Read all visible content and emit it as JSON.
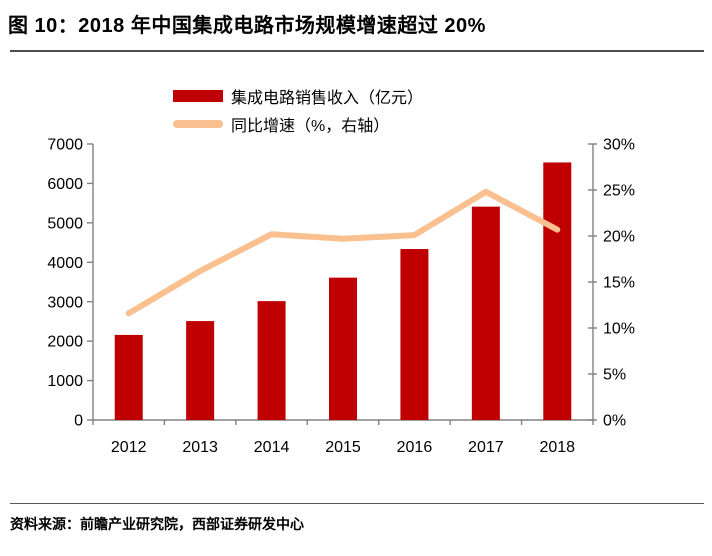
{
  "header": {
    "title": "图 10：2018 年中国集成电路市场规模增速超过 20%"
  },
  "footer": {
    "source": "资料来源：前瞻产业研究院，西部证券研发中心"
  },
  "colors": {
    "bar": "#C00000",
    "line": "#FAC090",
    "axis": "#808080",
    "rule": "#4d4d4d",
    "text": "#000000"
  },
  "chart_data": {
    "type": "bar",
    "subtype": "bar+line dual axis",
    "categories": [
      "2012",
      "2013",
      "2014",
      "2015",
      "2016",
      "2017",
      "2018"
    ],
    "series": [
      {
        "name": "集成电路销售收入（亿元）",
        "type": "bar",
        "axis": "left",
        "color": "#C00000",
        "values": [
          2158,
          2509,
          3015,
          3610,
          4336,
          5411,
          6532
        ]
      },
      {
        "name": "同比增速（%，右轴）",
        "type": "line",
        "axis": "right",
        "color": "#FAC090",
        "values": [
          11.6,
          16.2,
          20.2,
          19.7,
          20.1,
          24.8,
          20.7
        ]
      }
    ],
    "left_axis": {
      "min": 0,
      "max": 7000,
      "step": 1000,
      "ticks": [
        "0",
        "1000",
        "2000",
        "3000",
        "4000",
        "5000",
        "6000",
        "7000"
      ]
    },
    "right_axis": {
      "min": 0,
      "max": 30,
      "step": 5,
      "ticks": [
        "0%",
        "5%",
        "10%",
        "15%",
        "20%",
        "25%",
        "30%"
      ]
    },
    "grid": false,
    "legend_position": "top-center",
    "title": "图 10：2018 年中国集成电路市场规模增速超过 20%",
    "xlabel": "",
    "ylabel_left": "亿元",
    "ylabel_right": "%"
  },
  "legend": {
    "items": [
      {
        "label": "集成电路销售收入（亿元）",
        "swatch": "bar-swatch",
        "color": "#C00000"
      },
      {
        "label": "同比增速（%，右轴）",
        "swatch": "line-swatch",
        "color": "#FAC090"
      }
    ]
  }
}
